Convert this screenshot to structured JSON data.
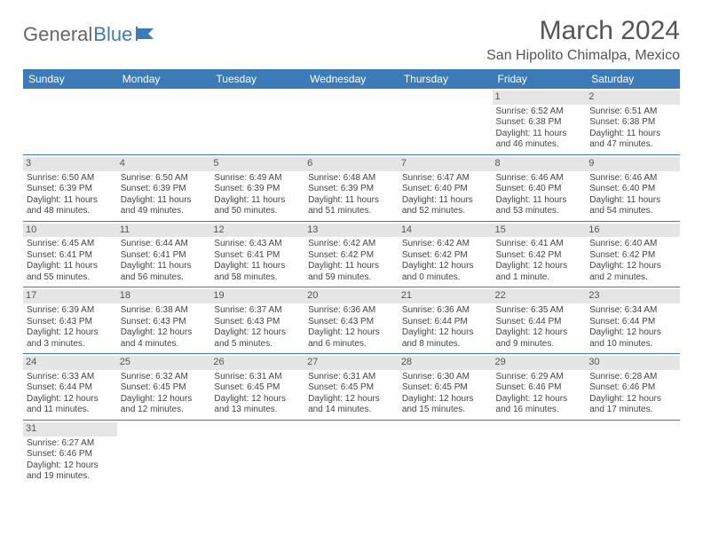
{
  "logo": {
    "part1": "General",
    "part2": "Blue"
  },
  "title": "March 2024",
  "location": "San Hipolito Chimalpa, Mexico",
  "colors": {
    "header_bg": "#3d7bb8",
    "header_text": "#ffffff",
    "daynum_bg": "#e5e5e5",
    "row_border": "#3d7bb8",
    "body_text": "#444444",
    "title_text": "#555555"
  },
  "weekdays": [
    "Sunday",
    "Monday",
    "Tuesday",
    "Wednesday",
    "Thursday",
    "Friday",
    "Saturday"
  ],
  "weeks": [
    [
      null,
      null,
      null,
      null,
      null,
      {
        "n": "1",
        "sr": "Sunrise: 6:52 AM",
        "ss": "Sunset: 6:38 PM",
        "dl": "Daylight: 11 hours and 46 minutes."
      },
      {
        "n": "2",
        "sr": "Sunrise: 6:51 AM",
        "ss": "Sunset: 6:38 PM",
        "dl": "Daylight: 11 hours and 47 minutes."
      }
    ],
    [
      {
        "n": "3",
        "sr": "Sunrise: 6:50 AM",
        "ss": "Sunset: 6:39 PM",
        "dl": "Daylight: 11 hours and 48 minutes."
      },
      {
        "n": "4",
        "sr": "Sunrise: 6:50 AM",
        "ss": "Sunset: 6:39 PM",
        "dl": "Daylight: 11 hours and 49 minutes."
      },
      {
        "n": "5",
        "sr": "Sunrise: 6:49 AM",
        "ss": "Sunset: 6:39 PM",
        "dl": "Daylight: 11 hours and 50 minutes."
      },
      {
        "n": "6",
        "sr": "Sunrise: 6:48 AM",
        "ss": "Sunset: 6:39 PM",
        "dl": "Daylight: 11 hours and 51 minutes."
      },
      {
        "n": "7",
        "sr": "Sunrise: 6:47 AM",
        "ss": "Sunset: 6:40 PM",
        "dl": "Daylight: 11 hours and 52 minutes."
      },
      {
        "n": "8",
        "sr": "Sunrise: 6:46 AM",
        "ss": "Sunset: 6:40 PM",
        "dl": "Daylight: 11 hours and 53 minutes."
      },
      {
        "n": "9",
        "sr": "Sunrise: 6:46 AM",
        "ss": "Sunset: 6:40 PM",
        "dl": "Daylight: 11 hours and 54 minutes."
      }
    ],
    [
      {
        "n": "10",
        "sr": "Sunrise: 6:45 AM",
        "ss": "Sunset: 6:41 PM",
        "dl": "Daylight: 11 hours and 55 minutes."
      },
      {
        "n": "11",
        "sr": "Sunrise: 6:44 AM",
        "ss": "Sunset: 6:41 PM",
        "dl": "Daylight: 11 hours and 56 minutes."
      },
      {
        "n": "12",
        "sr": "Sunrise: 6:43 AM",
        "ss": "Sunset: 6:41 PM",
        "dl": "Daylight: 11 hours and 58 minutes."
      },
      {
        "n": "13",
        "sr": "Sunrise: 6:42 AM",
        "ss": "Sunset: 6:42 PM",
        "dl": "Daylight: 11 hours and 59 minutes."
      },
      {
        "n": "14",
        "sr": "Sunrise: 6:42 AM",
        "ss": "Sunset: 6:42 PM",
        "dl": "Daylight: 12 hours and 0 minutes."
      },
      {
        "n": "15",
        "sr": "Sunrise: 6:41 AM",
        "ss": "Sunset: 6:42 PM",
        "dl": "Daylight: 12 hours and 1 minute."
      },
      {
        "n": "16",
        "sr": "Sunrise: 6:40 AM",
        "ss": "Sunset: 6:42 PM",
        "dl": "Daylight: 12 hours and 2 minutes."
      }
    ],
    [
      {
        "n": "17",
        "sr": "Sunrise: 6:39 AM",
        "ss": "Sunset: 6:43 PM",
        "dl": "Daylight: 12 hours and 3 minutes."
      },
      {
        "n": "18",
        "sr": "Sunrise: 6:38 AM",
        "ss": "Sunset: 6:43 PM",
        "dl": "Daylight: 12 hours and 4 minutes."
      },
      {
        "n": "19",
        "sr": "Sunrise: 6:37 AM",
        "ss": "Sunset: 6:43 PM",
        "dl": "Daylight: 12 hours and 5 minutes."
      },
      {
        "n": "20",
        "sr": "Sunrise: 6:36 AM",
        "ss": "Sunset: 6:43 PM",
        "dl": "Daylight: 12 hours and 6 minutes."
      },
      {
        "n": "21",
        "sr": "Sunrise: 6:36 AM",
        "ss": "Sunset: 6:44 PM",
        "dl": "Daylight: 12 hours and 8 minutes."
      },
      {
        "n": "22",
        "sr": "Sunrise: 6:35 AM",
        "ss": "Sunset: 6:44 PM",
        "dl": "Daylight: 12 hours and 9 minutes."
      },
      {
        "n": "23",
        "sr": "Sunrise: 6:34 AM",
        "ss": "Sunset: 6:44 PM",
        "dl": "Daylight: 12 hours and 10 minutes."
      }
    ],
    [
      {
        "n": "24",
        "sr": "Sunrise: 6:33 AM",
        "ss": "Sunset: 6:44 PM",
        "dl": "Daylight: 12 hours and 11 minutes."
      },
      {
        "n": "25",
        "sr": "Sunrise: 6:32 AM",
        "ss": "Sunset: 6:45 PM",
        "dl": "Daylight: 12 hours and 12 minutes."
      },
      {
        "n": "26",
        "sr": "Sunrise: 6:31 AM",
        "ss": "Sunset: 6:45 PM",
        "dl": "Daylight: 12 hours and 13 minutes."
      },
      {
        "n": "27",
        "sr": "Sunrise: 6:31 AM",
        "ss": "Sunset: 6:45 PM",
        "dl": "Daylight: 12 hours and 14 minutes."
      },
      {
        "n": "28",
        "sr": "Sunrise: 6:30 AM",
        "ss": "Sunset: 6:45 PM",
        "dl": "Daylight: 12 hours and 15 minutes."
      },
      {
        "n": "29",
        "sr": "Sunrise: 6:29 AM",
        "ss": "Sunset: 6:46 PM",
        "dl": "Daylight: 12 hours and 16 minutes."
      },
      {
        "n": "30",
        "sr": "Sunrise: 6:28 AM",
        "ss": "Sunset: 6:46 PM",
        "dl": "Daylight: 12 hours and 17 minutes."
      }
    ],
    [
      {
        "n": "31",
        "sr": "Sunrise: 6:27 AM",
        "ss": "Sunset: 6:46 PM",
        "dl": "Daylight: 12 hours and 19 minutes."
      },
      null,
      null,
      null,
      null,
      null,
      null
    ]
  ]
}
